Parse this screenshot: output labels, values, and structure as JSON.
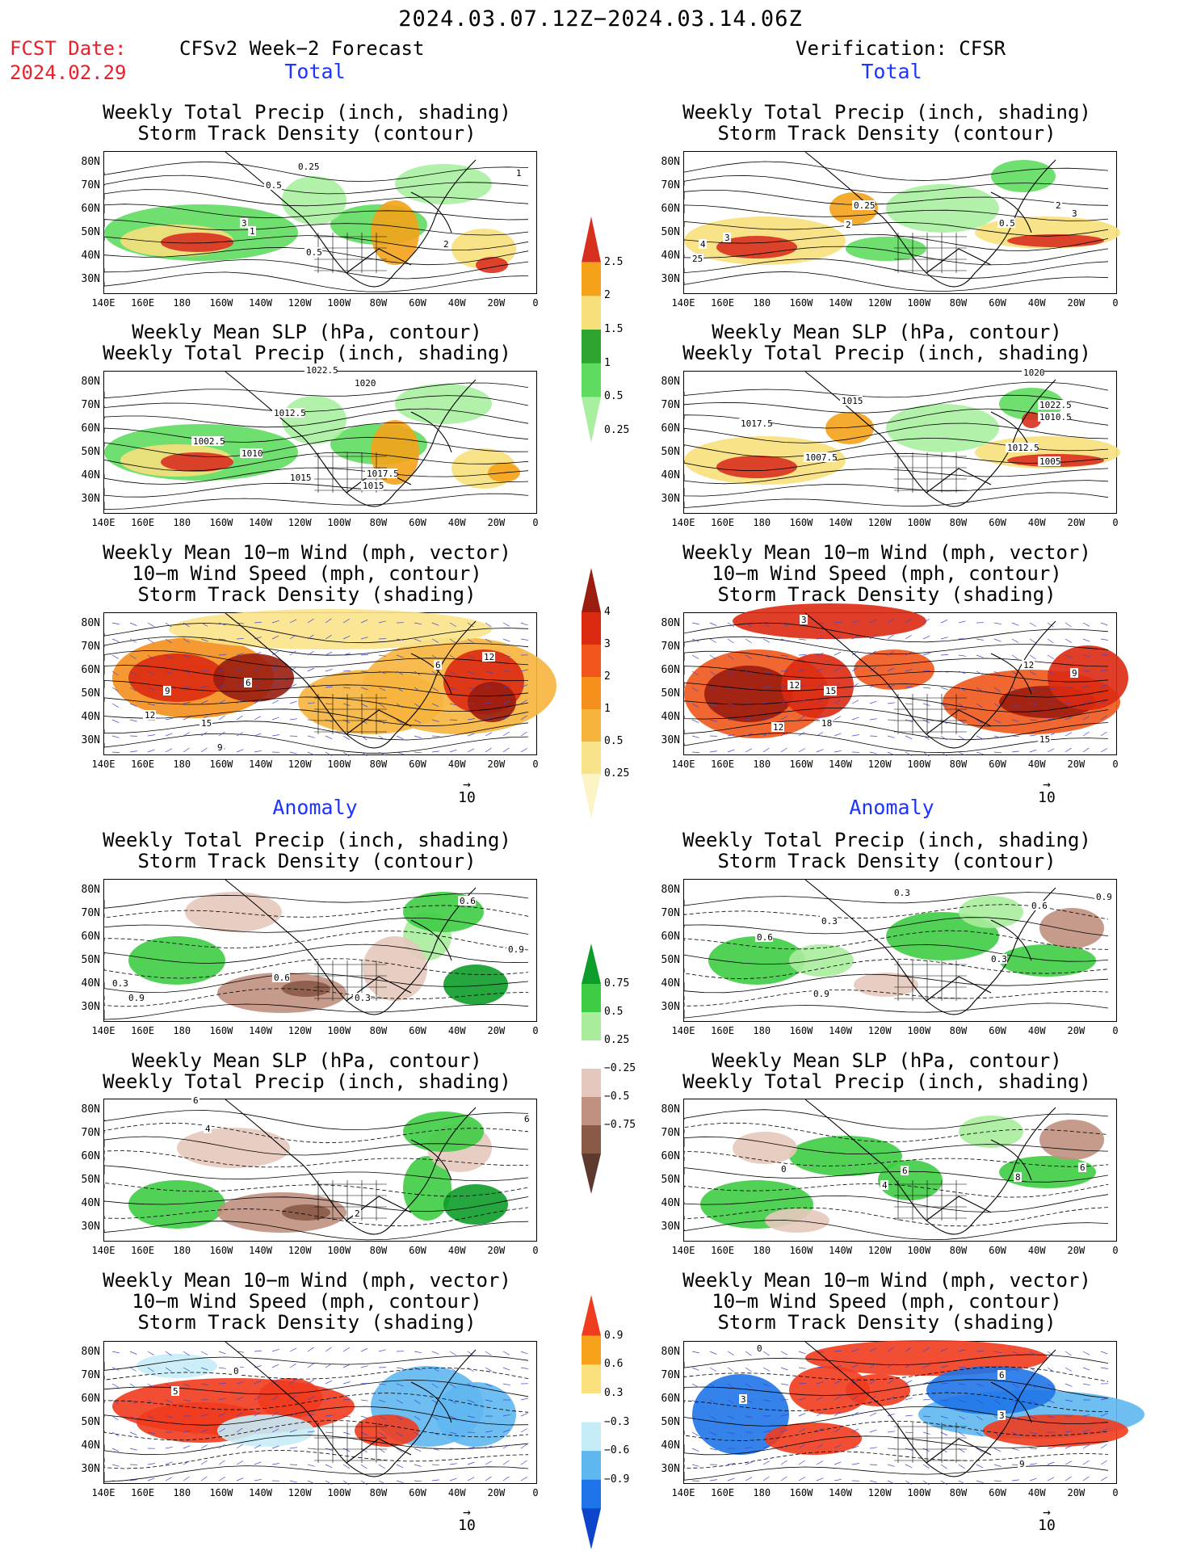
{
  "header": {
    "title": "2024.03.07.12Z−2024.03.14.06Z",
    "fcst_label": "FCST Date:",
    "fcst_date": "2024.02.29",
    "left_header": "CFSv2 Week−2 Forecast",
    "right_header": "Verification: CFSR",
    "total_label": "Total",
    "anomaly_label": "Anomaly"
  },
  "panel_titles": {
    "precip_storm": [
      "Weekly Total Precip (inch, shading)",
      "Storm Track Density (contour)"
    ],
    "slp_precip": [
      "Weekly Mean SLP (hPa, contour)",
      "Weekly Total Precip (inch, shading)"
    ],
    "wind_storm": [
      "Weekly Mean 10−m Wind (mph, vector)",
      "10−m Wind Speed (mph, contour)",
      "Storm Track Density (shading)"
    ]
  },
  "axes": {
    "lat_labels": [
      "80N",
      "70N",
      "60N",
      "50N",
      "40N",
      "30N"
    ],
    "lon_labels": [
      "140E",
      "160E",
      "180",
      "160W",
      "140W",
      "120W",
      "100W",
      "80W",
      "60W",
      "40W",
      "20W",
      "0"
    ]
  },
  "vector_ref": "10",
  "colorbars": {
    "precip_total": {
      "labels": [
        "2.5",
        "2",
        "1.5",
        "1",
        "0.5",
        "0.25"
      ],
      "colors": [
        "#d7301f",
        "#f4a21a",
        "#f7e07c",
        "#2fa52f",
        "#5fdc5f",
        "#a8f0a0"
      ]
    },
    "storm_total": {
      "labels": [
        "4",
        "3",
        "2",
        "1",
        "0.5",
        "0.25"
      ],
      "colors": [
        "#9a1d0f",
        "#dc2a12",
        "#f0561c",
        "#f48f1c",
        "#f6b43d",
        "#f9e38a",
        "#fcf4c4"
      ]
    },
    "precip_anom": {
      "labels": [
        "0.75",
        "0.5",
        "0.25",
        "−0.25",
        "−0.5",
        "−0.75"
      ],
      "colors": [
        "#0d9c2a",
        "#3fcc45",
        "#a8ec9c",
        "#ffffff",
        "#e5c8bd",
        "#c09080",
        "#8a5a47",
        "#5e3a2e"
      ]
    },
    "storm_anom": {
      "labels": [
        "0.9",
        "0.6",
        "0.3",
        "−0.3",
        "−0.6",
        "−0.9"
      ],
      "colors": [
        "#ef3b1e",
        "#f7a21b",
        "#f9e07c",
        "#ffffff",
        "#c6ecf7",
        "#5fb7f0",
        "#1e74e8",
        "#0c45c9"
      ]
    }
  },
  "panel_labels": {
    "L1": [
      "0.25",
      "0.5",
      "3",
      "1",
      "0.5",
      "2",
      "1"
    ],
    "R1": [
      "4",
      "3",
      "0.25",
      "2",
      "0.5",
      "2",
      "3",
      "25"
    ],
    "L2": [
      "1022.5",
      "1020",
      "1012.5",
      "1002.5",
      "1010",
      "1015",
      "1017.5",
      "1015"
    ],
    "R2": [
      "1020",
      "1015",
      "1017.5",
      "1022.5",
      "1010.5",
      "1007.5",
      "1012.5",
      "1005"
    ],
    "L3": [
      "9",
      "6",
      "12",
      "15",
      "9",
      "12",
      "6"
    ],
    "R3": [
      "3",
      "12",
      "15",
      "18",
      "12",
      "12",
      "9",
      "15"
    ],
    "L4": [
      "0.3",
      "0.9",
      "0.6",
      "0.3",
      "0.6",
      "0.9"
    ],
    "R4": [
      "0.3",
      "0.6",
      "0.3",
      "0.9",
      "0.3",
      "0.6",
      "0.9"
    ],
    "L5": [
      "6",
      "4",
      "2",
      "6"
    ],
    "R5": [
      "0",
      "6",
      "4",
      "8",
      "6"
    ],
    "L6": [
      "0",
      "5"
    ],
    "R6": [
      "0",
      "6",
      "3",
      "3",
      "9"
    ]
  }
}
